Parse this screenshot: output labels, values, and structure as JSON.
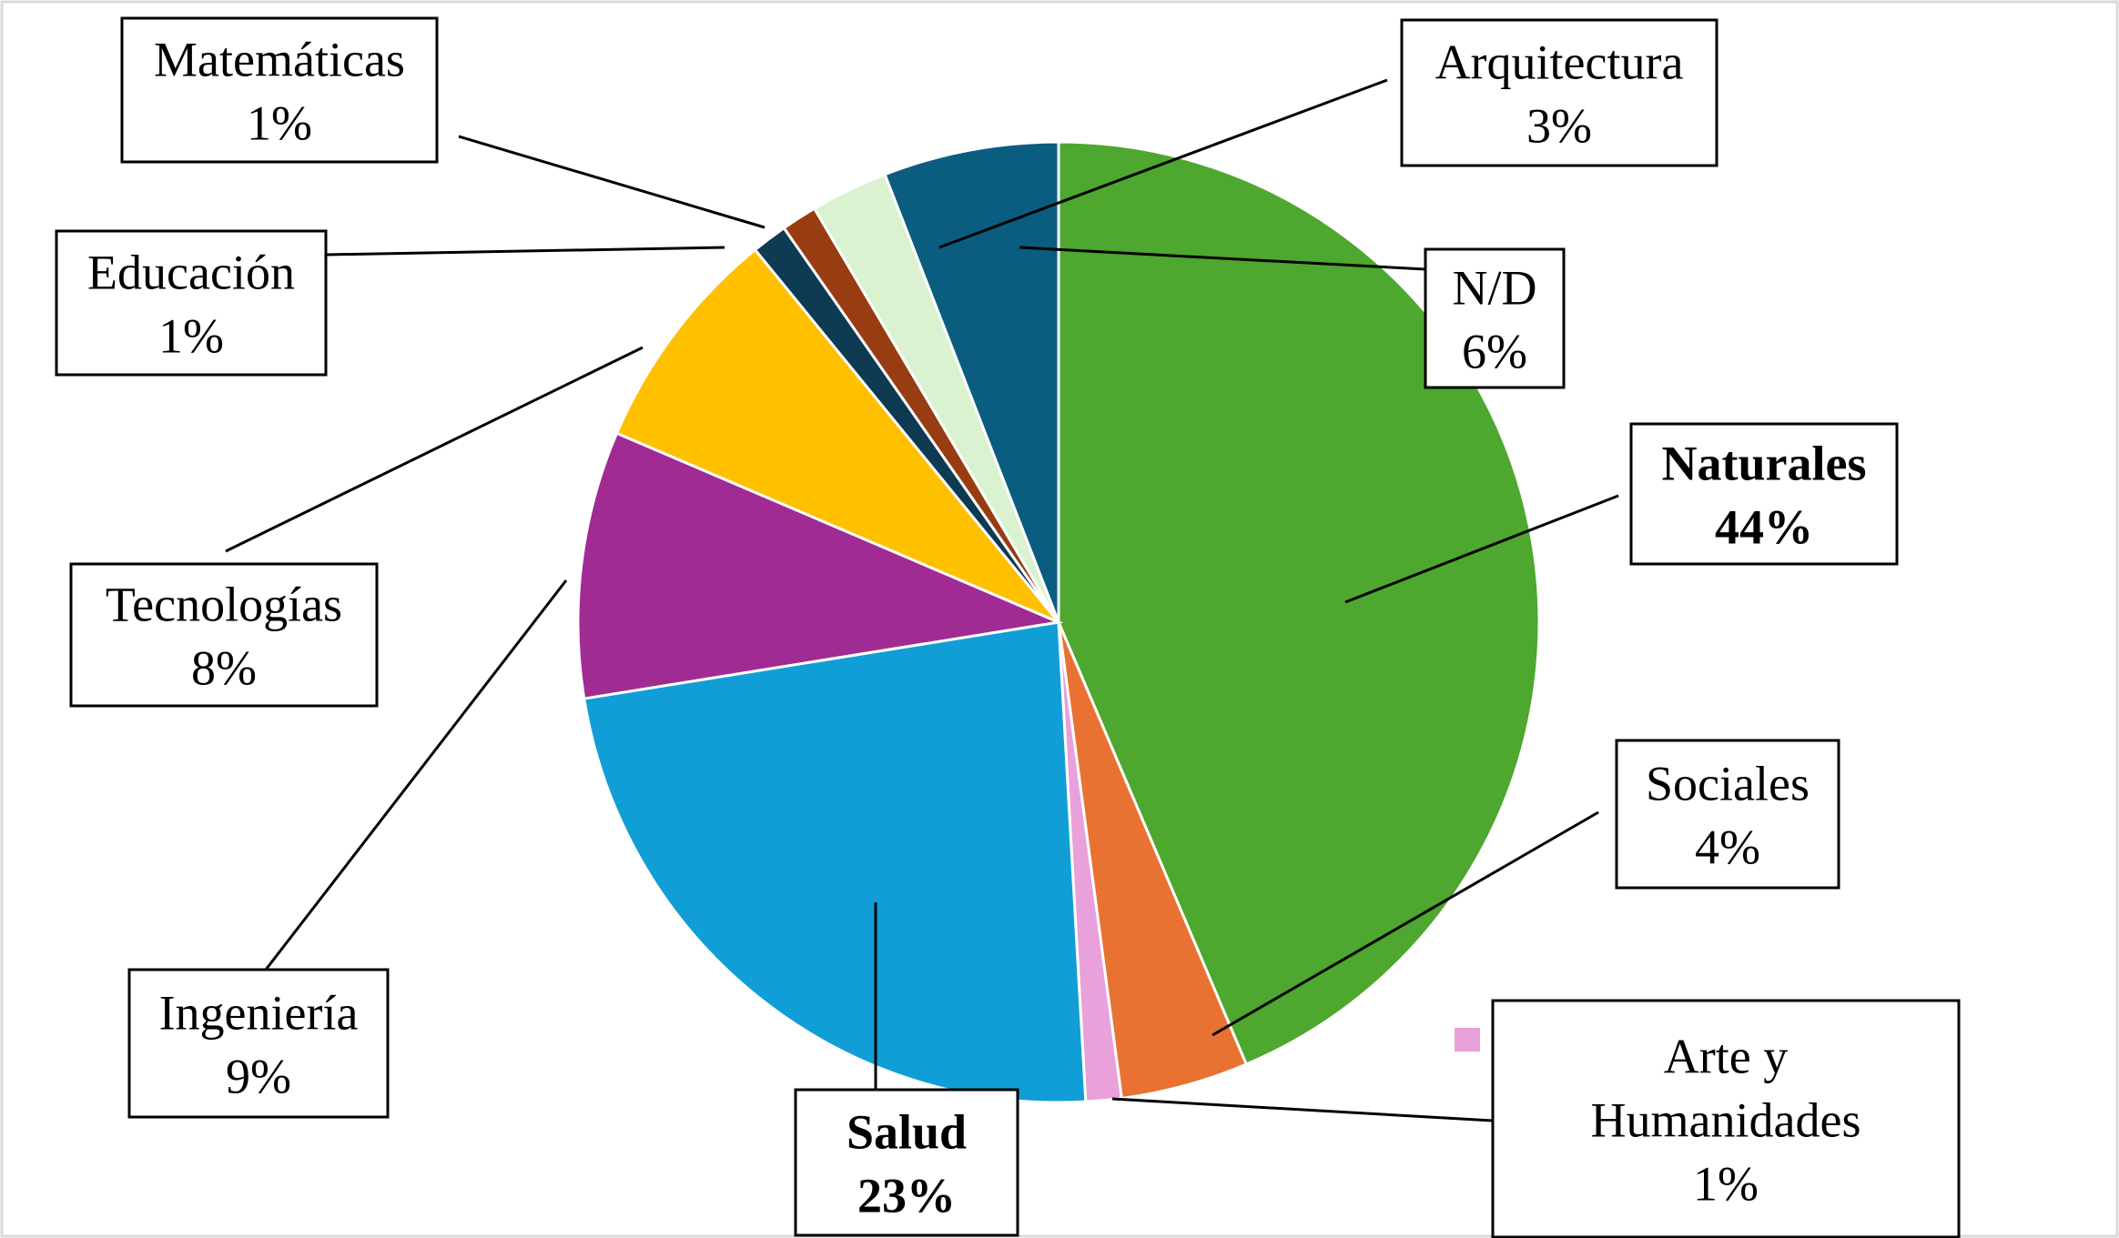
{
  "chart_data": {
    "type": "pie",
    "start": "12 o'clock",
    "direction": "clockwise",
    "slices": [
      {
        "label": "Naturales",
        "lines": [
          "Naturales"
        ],
        "pct_text": "44%",
        "value": 43.7,
        "color": "#4ea72e",
        "bold": true
      },
      {
        "label": "Sociales",
        "lines": [
          "Sociales"
        ],
        "pct_text": "4%",
        "value": 4.3,
        "color": "#e97132",
        "bold": false
      },
      {
        "label": "Arte y Humanidades",
        "lines": [
          "Arte y",
          "Humanidades"
        ],
        "pct_text": "1%",
        "value": 1.2,
        "color": "#e8a1da",
        "bold": false
      },
      {
        "label": "Salud",
        "lines": [
          "Salud"
        ],
        "pct_text": "23%",
        "value": 23.4,
        "color": "#119ed6",
        "bold": true
      },
      {
        "label": "Ingeniería",
        "lines": [
          "Ingeniería"
        ],
        "pct_text": "9%",
        "value": 9.0,
        "color": "#a02b93",
        "bold": false
      },
      {
        "label": "Tecnologías",
        "lines": [
          "Tecnologías"
        ],
        "pct_text": "8%",
        "value": 7.7,
        "color": "#ffc000",
        "bold": false
      },
      {
        "label": "Educación",
        "lines": [
          "Educación"
        ],
        "pct_text": "1%",
        "value": 1.2,
        "color": "#0e3a52",
        "bold": false
      },
      {
        "label": "Matemáticas",
        "lines": [
          "Matemáticas"
        ],
        "pct_text": "1%",
        "value": 1.2,
        "color": "#983c12",
        "bold": false
      },
      {
        "label": "Arquitectura",
        "lines": [
          "Arquitectura"
        ],
        "pct_text": "3%",
        "value": 2.6,
        "color": "#daf2d0",
        "bold": false
      },
      {
        "label": "N/D",
        "lines": [
          "N/D"
        ],
        "pct_text": "6%",
        "value": 5.9,
        "color": "#0b5d80",
        "bold": false
      }
    ]
  }
}
